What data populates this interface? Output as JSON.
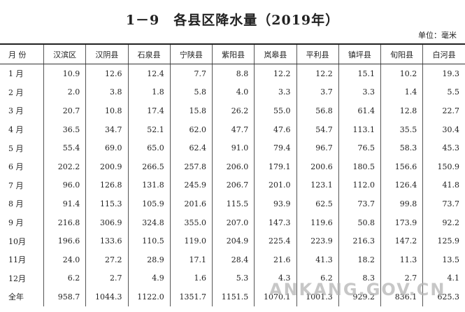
{
  "header": {
    "title": "1－9　各县区降水量（2019年）",
    "unit": "单位：毫米"
  },
  "table": {
    "columns": [
      "月 份",
      "汉滨区",
      "汉阴县",
      "石泉县",
      "宁陕县",
      "紫阳县",
      "岚皋县",
      "平利县",
      "镇坪县",
      "旬阳县",
      "白河县"
    ],
    "rows": [
      [
        "1 月",
        "10.9",
        "12.6",
        "12.4",
        "7.7",
        "8.8",
        "12.2",
        "12.2",
        "15.1",
        "10.2",
        "19.3"
      ],
      [
        "2 月",
        "2.0",
        "3.8",
        "1.8",
        "5.8",
        "4.0",
        "3.3",
        "3.7",
        "3.3",
        "1.4",
        "5.5"
      ],
      [
        "3 月",
        "20.7",
        "10.8",
        "17.4",
        "15.8",
        "26.2",
        "55.0",
        "56.8",
        "61.4",
        "12.8",
        "22.7"
      ],
      [
        "4 月",
        "36.5",
        "34.7",
        "52.1",
        "62.0",
        "47.7",
        "47.6",
        "54.7",
        "113.1",
        "35.5",
        "30.4"
      ],
      [
        "5 月",
        "55.4",
        "69.0",
        "65.0",
        "62.4",
        "91.0",
        "79.4",
        "96.7",
        "76.5",
        "58.3",
        "45.3"
      ],
      [
        "6 月",
        "202.2",
        "200.9",
        "266.5",
        "257.8",
        "206.0",
        "179.1",
        "200.6",
        "180.5",
        "156.6",
        "150.9"
      ],
      [
        "7 月",
        "96.0",
        "126.8",
        "131.8",
        "245.9",
        "206.7",
        "201.0",
        "123.1",
        "112.0",
        "126.4",
        "41.8"
      ],
      [
        "8 月",
        "91.4",
        "115.3",
        "105.9",
        "201.6",
        "115.5",
        "93.9",
        "62.5",
        "73.7",
        "99.8",
        "73.7"
      ],
      [
        "9 月",
        "216.8",
        "306.9",
        "324.8",
        "355.0",
        "207.0",
        "147.3",
        "119.6",
        "50.8",
        "173.9",
        "92.2"
      ],
      [
        "10月",
        "196.6",
        "133.6",
        "110.5",
        "119.0",
        "204.9",
        "225.4",
        "223.9",
        "216.3",
        "147.2",
        "125.9"
      ],
      [
        "11月",
        "24.0",
        "27.2",
        "28.9",
        "17.1",
        "28.4",
        "21.6",
        "41.3",
        "18.2",
        "11.3",
        "13.5"
      ],
      [
        "12月",
        "6.2",
        "2.7",
        "4.9",
        "1.6",
        "5.3",
        "4.3",
        "6.2",
        "8.3",
        "2.7",
        "4.1"
      ],
      [
        "全年",
        "958.7",
        "1044.3",
        "1122.0",
        "1351.7",
        "1151.5",
        "1070.1",
        "1001.3",
        "929.2",
        "836.1",
        "625.3"
      ]
    ]
  },
  "watermark": "ANKANG.GOV.CN"
}
